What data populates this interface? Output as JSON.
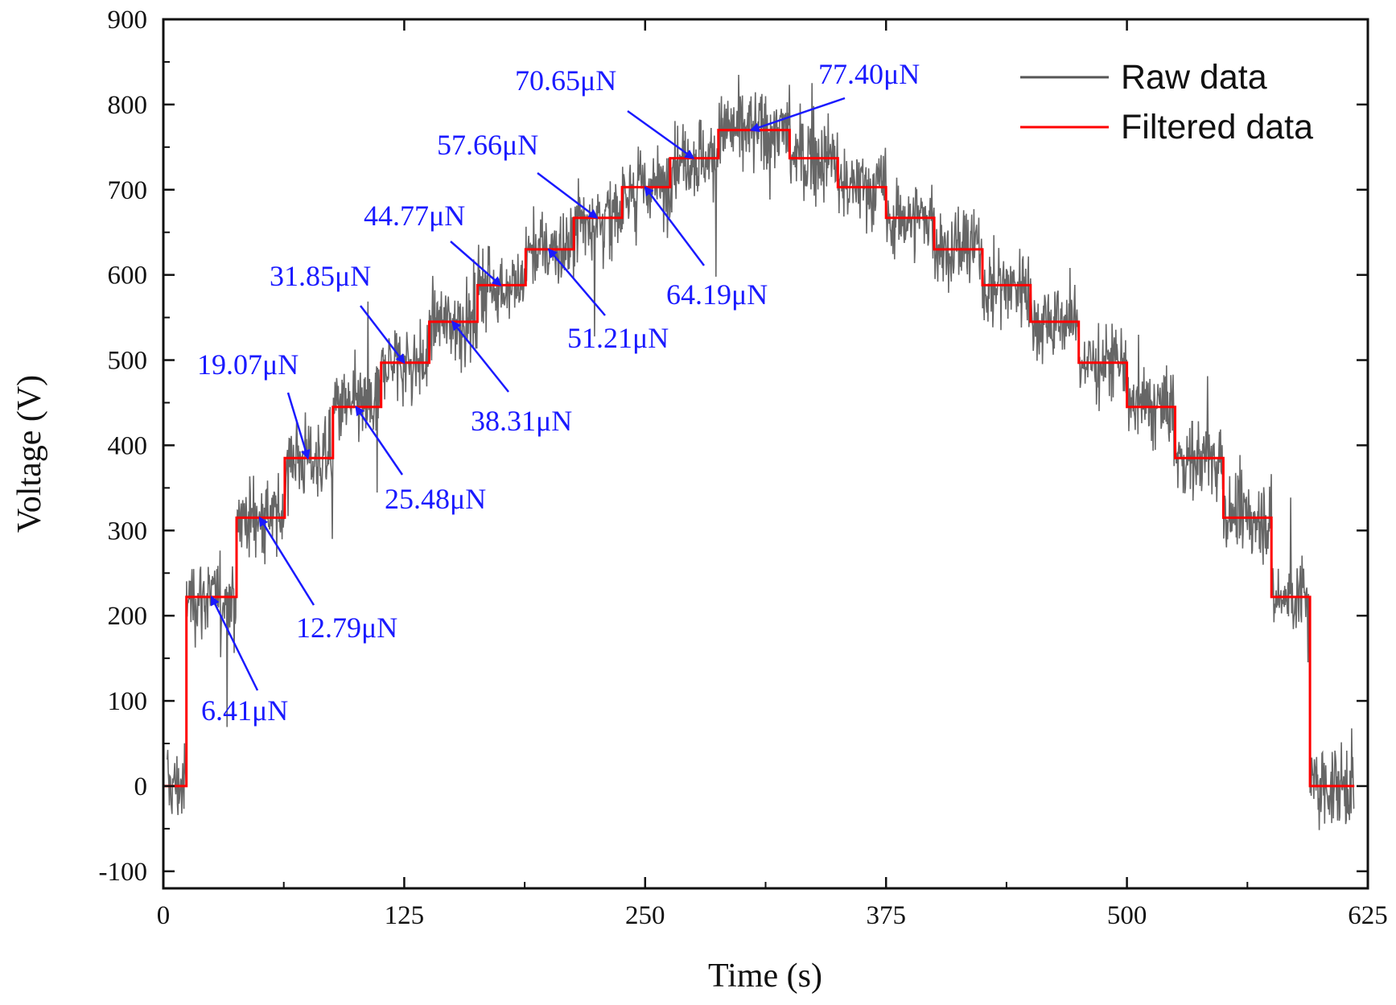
{
  "chart_data": {
    "type": "line",
    "title": "",
    "xlabel": "Time (s)",
    "ylabel": "Voltage (V)",
    "xlim": [
      0,
      625
    ],
    "ylim": [
      -120,
      900
    ],
    "xticks": [
      0,
      125,
      250,
      375,
      500,
      625
    ],
    "xtick_labels": [
      "0",
      "125",
      "250",
      "375",
      "500",
      "625"
    ],
    "yticks": [
      -100,
      0,
      100,
      200,
      300,
      400,
      500,
      600,
      700,
      800,
      900
    ],
    "ytick_labels": [
      "-100",
      "0",
      "100",
      "200",
      "300",
      "400",
      "500",
      "600",
      "700",
      "800",
      "900"
    ],
    "grid": false,
    "legend": {
      "position": "top-right",
      "entries": [
        {
          "name": "Raw data",
          "color": "#555555"
        },
        {
          "name": "Filtered data",
          "color": "#ff0000"
        }
      ]
    },
    "series": [
      {
        "name": "Filtered data",
        "color": "#ff0000",
        "x": [
          0,
          12,
          12,
          38,
          38,
          63,
          63,
          88,
          88,
          113,
          113,
          138,
          138,
          163,
          163,
          188,
          188,
          213,
          213,
          238,
          238,
          263,
          263,
          288,
          288,
          325,
          325,
          350,
          350,
          375,
          375,
          400,
          400,
          425,
          425,
          450,
          450,
          475,
          475,
          500,
          500,
          525,
          525,
          550,
          550,
          575,
          575,
          595,
          595,
          618
        ],
        "y": [
          0,
          0,
          222,
          222,
          315,
          315,
          385,
          385,
          445,
          445,
          497,
          497,
          545,
          545,
          588,
          588,
          630,
          630,
          667,
          667,
          703,
          703,
          737,
          737,
          770,
          770,
          737,
          737,
          703,
          703,
          667,
          667,
          630,
          630,
          588,
          588,
          545,
          545,
          497,
          497,
          445,
          445,
          385,
          385,
          315,
          315,
          222,
          222,
          0,
          0
        ]
      },
      {
        "name": "Raw data",
        "color": "#555555",
        "noise_amplitude_v": 60
      }
    ],
    "annotations": [
      {
        "label": "6.41μN",
        "x": 25,
        "y": 222
      },
      {
        "label": "12.79μN",
        "x": 50,
        "y": 315
      },
      {
        "label": "19.07μN",
        "x": 75,
        "y": 385
      },
      {
        "label": "25.48μN",
        "x": 100,
        "y": 445
      },
      {
        "label": "31.85μN",
        "x": 125,
        "y": 497
      },
      {
        "label": "38.31μN",
        "x": 150,
        "y": 545
      },
      {
        "label": "44.77μN",
        "x": 175,
        "y": 588
      },
      {
        "label": "51.21μN",
        "x": 200,
        "y": 630
      },
      {
        "label": "57.66μN",
        "x": 225,
        "y": 667
      },
      {
        "label": "64.19μN",
        "x": 250,
        "y": 703
      },
      {
        "label": "70.65μN",
        "x": 275,
        "y": 737
      },
      {
        "label": "77.40μN",
        "x": 305,
        "y": 770
      }
    ],
    "annotation_color": "#1a1aff"
  }
}
